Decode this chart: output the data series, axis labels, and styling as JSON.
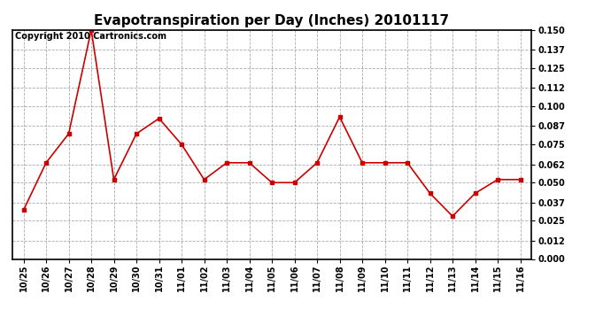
{
  "title": "Evapotranspiration per Day (Inches) 20101117",
  "copyright_text": "Copyright 2010 Cartronics.com",
  "x_labels": [
    "10/25",
    "10/26",
    "10/27",
    "10/28",
    "10/29",
    "10/30",
    "10/31",
    "11/01",
    "11/02",
    "11/03",
    "11/04",
    "11/05",
    "11/06",
    "11/07",
    "11/08",
    "11/09",
    "11/10",
    "11/11",
    "11/12",
    "11/13",
    "11/14",
    "11/15",
    "11/16"
  ],
  "y_values": [
    0.032,
    0.063,
    0.082,
    0.15,
    0.052,
    0.082,
    0.092,
    0.075,
    0.052,
    0.063,
    0.063,
    0.05,
    0.05,
    0.063,
    0.093,
    0.063,
    0.063,
    0.063,
    0.043,
    0.028,
    0.043,
    0.052,
    0.052
  ],
  "y_ticks": [
    0.0,
    0.012,
    0.025,
    0.037,
    0.05,
    0.062,
    0.075,
    0.087,
    0.1,
    0.112,
    0.125,
    0.137,
    0.15
  ],
  "y_tick_labels": [
    "0.000",
    "0.012",
    "0.025",
    "0.037",
    "0.050",
    "0.062",
    "0.075",
    "0.087",
    "0.100",
    "0.112",
    "0.125",
    "0.137",
    "0.150"
  ],
  "ylim": [
    0.0,
    0.15
  ],
  "line_color": "#cc0000",
  "marker": "s",
  "marker_size": 3,
  "background_color": "#ffffff",
  "plot_bg_color": "#ffffff",
  "grid_color": "#aaaaaa",
  "title_fontsize": 11,
  "tick_fontsize": 7,
  "copyright_fontsize": 7
}
